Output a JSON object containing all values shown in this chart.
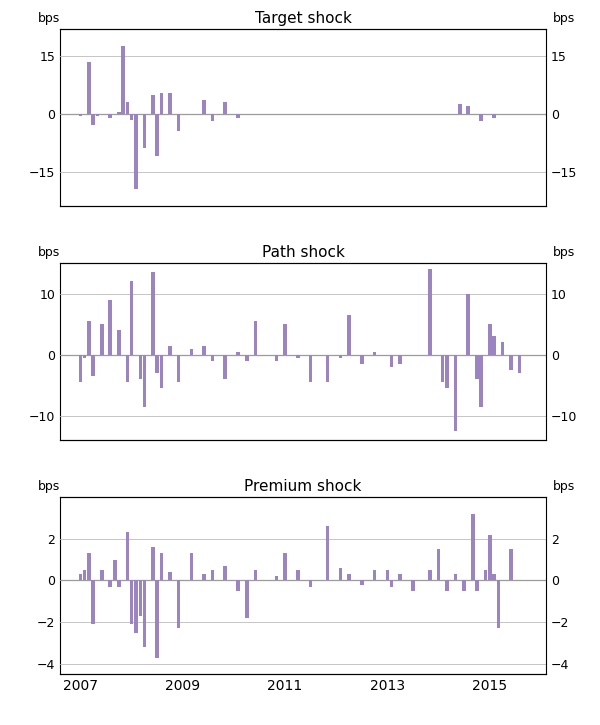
{
  "title1": "Target shock",
  "title2": "Path shock",
  "title3": "Premium shock",
  "bar_color": "#9b84c0",
  "background_color": "#ffffff",
  "xlim": [
    2006.6,
    2016.1
  ],
  "xtick_years": [
    2007,
    2009,
    2011,
    2013,
    2015
  ],
  "panel1": {
    "ylim": [
      -24,
      22
    ],
    "yticks": [
      -15,
      0,
      15
    ],
    "data": [
      [
        2007.0,
        -0.5
      ],
      [
        2007.17,
        13.5
      ],
      [
        2007.25,
        -3.0
      ],
      [
        2007.33,
        -0.5
      ],
      [
        2007.58,
        -1.0
      ],
      [
        2007.75,
        0.5
      ],
      [
        2007.83,
        17.5
      ],
      [
        2007.92,
        3.0
      ],
      [
        2008.0,
        -1.5
      ],
      [
        2008.08,
        -19.5
      ],
      [
        2008.25,
        -9.0
      ],
      [
        2008.42,
        5.0
      ],
      [
        2008.5,
        -11.0
      ],
      [
        2008.58,
        5.5
      ],
      [
        2008.75,
        5.5
      ],
      [
        2008.92,
        -4.5
      ],
      [
        2009.42,
        3.5
      ],
      [
        2009.58,
        -2.0
      ],
      [
        2009.83,
        3.0
      ],
      [
        2010.08,
        -1.0
      ],
      [
        2014.42,
        2.5
      ],
      [
        2014.58,
        2.0
      ],
      [
        2014.83,
        -2.0
      ],
      [
        2015.08,
        -1.0
      ]
    ]
  },
  "panel2": {
    "ylim": [
      -14,
      15
    ],
    "yticks": [
      -10,
      0,
      10
    ],
    "data": [
      [
        2007.0,
        -4.5
      ],
      [
        2007.08,
        -0.5
      ],
      [
        2007.17,
        5.5
      ],
      [
        2007.25,
        -3.5
      ],
      [
        2007.42,
        5.0
      ],
      [
        2007.58,
        9.0
      ],
      [
        2007.75,
        4.0
      ],
      [
        2007.92,
        -4.5
      ],
      [
        2008.0,
        12.0
      ],
      [
        2008.17,
        -4.0
      ],
      [
        2008.25,
        -8.5
      ],
      [
        2008.42,
        13.5
      ],
      [
        2008.5,
        -3.0
      ],
      [
        2008.58,
        -5.5
      ],
      [
        2008.75,
        1.5
      ],
      [
        2008.92,
        -4.5
      ],
      [
        2009.17,
        1.0
      ],
      [
        2009.42,
        1.5
      ],
      [
        2009.58,
        -1.0
      ],
      [
        2009.83,
        -4.0
      ],
      [
        2010.08,
        0.5
      ],
      [
        2010.25,
        -1.0
      ],
      [
        2010.42,
        5.5
      ],
      [
        2010.83,
        -1.0
      ],
      [
        2011.0,
        5.0
      ],
      [
        2011.25,
        -0.5
      ],
      [
        2011.5,
        -4.5
      ],
      [
        2011.83,
        -4.5
      ],
      [
        2012.08,
        -0.5
      ],
      [
        2012.25,
        6.5
      ],
      [
        2012.5,
        -1.5
      ],
      [
        2012.75,
        0.5
      ],
      [
        2013.08,
        -2.0
      ],
      [
        2013.25,
        -1.5
      ],
      [
        2013.83,
        14.0
      ],
      [
        2014.08,
        -4.5
      ],
      [
        2014.17,
        -5.5
      ],
      [
        2014.33,
        -12.5
      ],
      [
        2014.58,
        10.0
      ],
      [
        2014.75,
        -4.0
      ],
      [
        2014.83,
        -8.5
      ],
      [
        2015.0,
        5.0
      ],
      [
        2015.08,
        3.0
      ],
      [
        2015.25,
        2.0
      ],
      [
        2015.42,
        -2.5
      ],
      [
        2015.58,
        -3.0
      ]
    ]
  },
  "panel3": {
    "ylim": [
      -4.5,
      4.0
    ],
    "yticks": [
      -4,
      -2,
      0,
      2
    ],
    "data": [
      [
        2007.0,
        0.3
      ],
      [
        2007.08,
        0.5
      ],
      [
        2007.17,
        1.3
      ],
      [
        2007.25,
        -2.1
      ],
      [
        2007.42,
        0.5
      ],
      [
        2007.58,
        -0.3
      ],
      [
        2007.67,
        1.0
      ],
      [
        2007.75,
        -0.3
      ],
      [
        2007.92,
        2.3
      ],
      [
        2008.0,
        -2.1
      ],
      [
        2008.08,
        -2.5
      ],
      [
        2008.17,
        -1.7
      ],
      [
        2008.25,
        -3.2
      ],
      [
        2008.42,
        1.6
      ],
      [
        2008.5,
        -3.7
      ],
      [
        2008.58,
        1.3
      ],
      [
        2008.75,
        0.4
      ],
      [
        2008.92,
        -2.3
      ],
      [
        2009.17,
        1.3
      ],
      [
        2009.42,
        0.3
      ],
      [
        2009.58,
        0.5
      ],
      [
        2009.83,
        0.7
      ],
      [
        2010.08,
        -0.5
      ],
      [
        2010.25,
        -1.8
      ],
      [
        2010.42,
        0.5
      ],
      [
        2010.83,
        0.2
      ],
      [
        2011.0,
        1.3
      ],
      [
        2011.25,
        0.5
      ],
      [
        2011.5,
        -0.3
      ],
      [
        2011.83,
        2.6
      ],
      [
        2012.08,
        0.6
      ],
      [
        2012.25,
        0.3
      ],
      [
        2012.5,
        -0.2
      ],
      [
        2012.75,
        0.5
      ],
      [
        2013.0,
        0.5
      ],
      [
        2013.08,
        -0.3
      ],
      [
        2013.25,
        0.3
      ],
      [
        2013.5,
        -0.5
      ],
      [
        2013.83,
        0.5
      ],
      [
        2014.0,
        1.5
      ],
      [
        2014.17,
        -0.5
      ],
      [
        2014.33,
        0.3
      ],
      [
        2014.5,
        -0.5
      ],
      [
        2014.67,
        3.2
      ],
      [
        2014.75,
        -0.5
      ],
      [
        2014.92,
        0.5
      ],
      [
        2015.0,
        2.2
      ],
      [
        2015.08,
        0.3
      ],
      [
        2015.17,
        -2.3
      ],
      [
        2015.42,
        1.5
      ]
    ]
  }
}
